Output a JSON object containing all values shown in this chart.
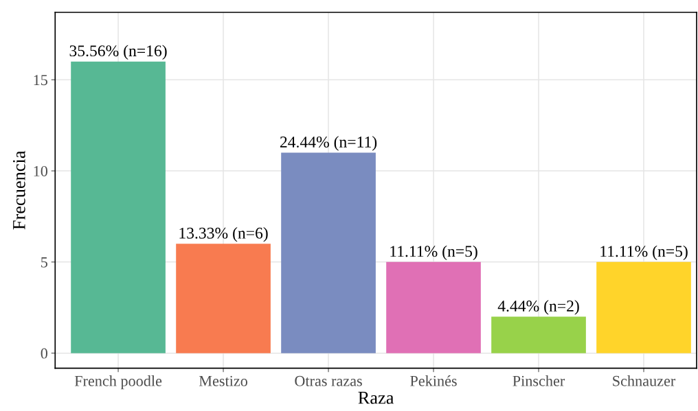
{
  "chart_data": {
    "type": "bar",
    "xlabel": "Raza",
    "ylabel": "Frecuencia",
    "categories": [
      "French poodle",
      "Mestizo",
      "Otras razas",
      "Pekinés",
      "Pinscher",
      "Schnauzer"
    ],
    "values": [
      16,
      6,
      11,
      5,
      2,
      5
    ],
    "colors": [
      "#57b894",
      "#f87b50",
      "#7a8cc0",
      "#e070b5",
      "#98d24a",
      "#ffd42a"
    ],
    "value_labels": [
      "35.56% (n=16)",
      "13.33% (n=6)",
      "24.44% (n=11)",
      "11.11% (n=5)",
      "4.44% (n=2)",
      "11.11% (n=5)"
    ],
    "ylim": [
      -0.83,
      18.7
    ],
    "yticks": [
      0,
      5,
      10,
      15
    ],
    "grid": true,
    "legend": false
  }
}
